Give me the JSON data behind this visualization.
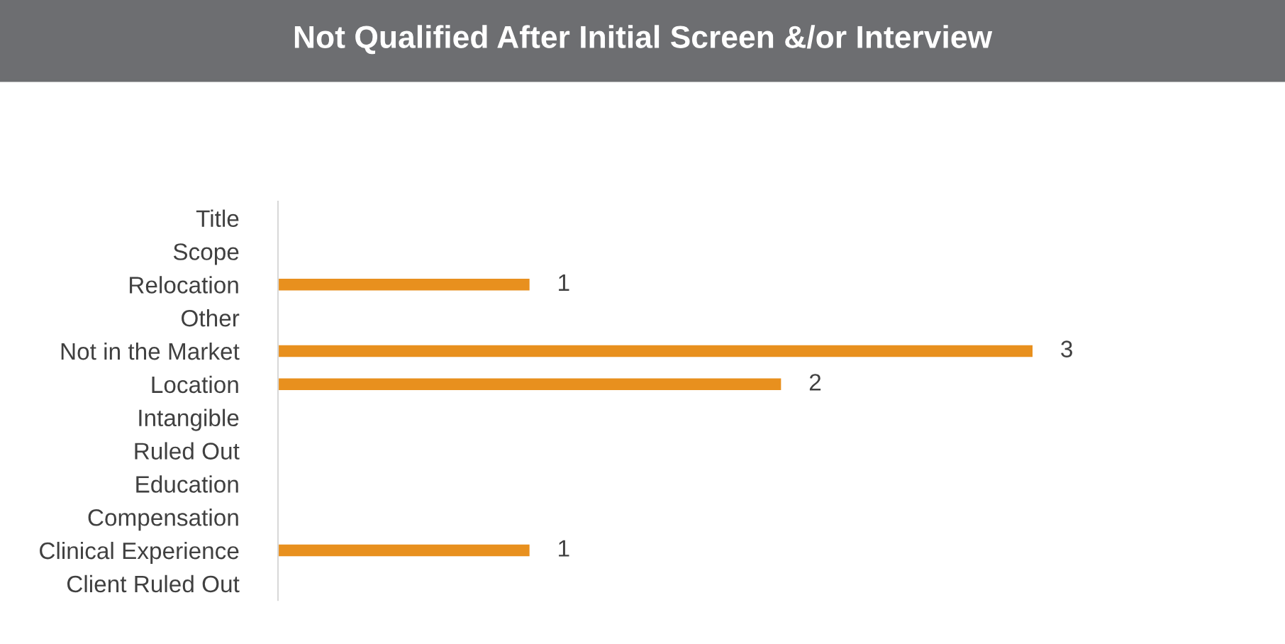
{
  "chart_data": {
    "type": "bar",
    "orientation": "horizontal",
    "title": "Not Qualified After Initial Screen &/or Interview",
    "categories": [
      "Title",
      "Scope",
      "Relocation",
      "Other",
      "Not in the Market",
      "Location",
      "Intangible",
      "Ruled Out",
      "Education",
      "Compensation",
      "Clinical Experience",
      "Client Ruled Out"
    ],
    "values": [
      0,
      0,
      1,
      0,
      3,
      2,
      0,
      0,
      0,
      0,
      1,
      0
    ],
    "value_labels": [
      null,
      null,
      "1",
      null,
      "3",
      "2",
      null,
      null,
      null,
      null,
      "1",
      null
    ],
    "color": "#e8901e",
    "xlim": [
      0,
      3
    ],
    "tick_labels": "y",
    "grid": false,
    "legend": false
  }
}
